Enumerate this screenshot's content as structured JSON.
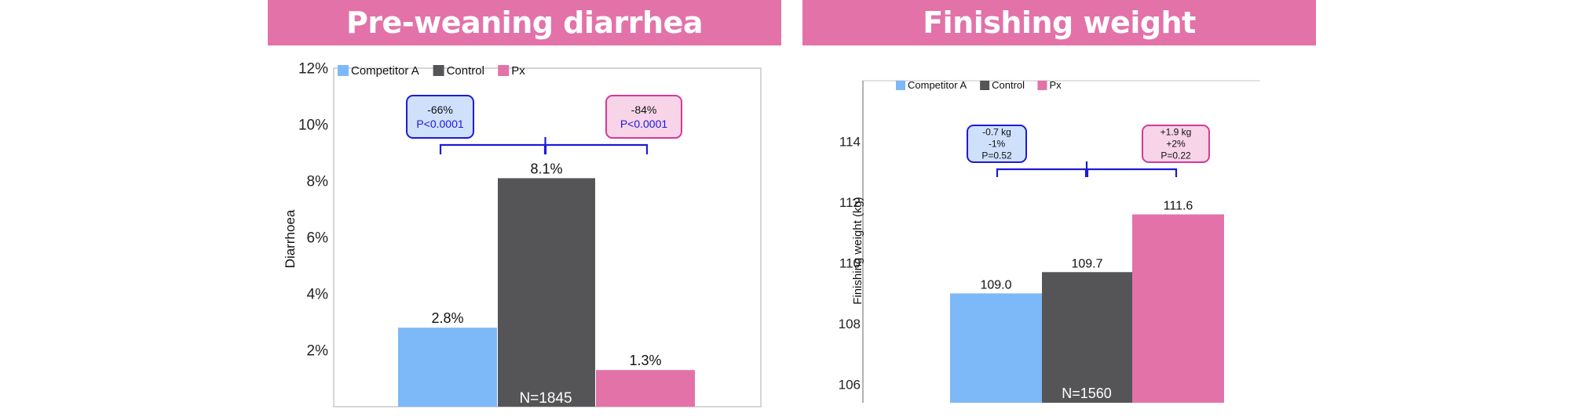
{
  "banners": {
    "left": "Pre-weaning diarrhea",
    "right": "Finishing weight"
  },
  "colors": {
    "banner": "#e372a9",
    "competitor": "#7db8f8",
    "control": "#555558",
    "px": "#e372a9",
    "bracket": "#1d1ad6"
  },
  "legend": [
    "Competitor A",
    "Control",
    "Px"
  ],
  "chart_data": [
    {
      "type": "bar",
      "categories": [
        "Competitor A",
        "Control",
        "Px"
      ],
      "values": [
        2.8,
        8.1,
        1.3
      ],
      "value_labels": [
        "2.8%",
        "8.1%",
        "1.3%"
      ],
      "ylabel": "Diarrhoea",
      "ylim": [
        0,
        12
      ],
      "yticks": [
        2,
        4,
        6,
        8,
        10,
        12
      ],
      "ytick_labels": [
        "2%",
        "4%",
        "6%",
        "8%",
        "10%",
        "12%"
      ],
      "n_label": "N=1845",
      "legend_position": "top-left",
      "annotations": [
        {
          "lines": [
            "-66%",
            "P<0.0001"
          ],
          "between": [
            "Competitor A",
            "Control"
          ]
        },
        {
          "lines": [
            "-84%",
            "P<0.0001"
          ],
          "between": [
            "Control",
            "Px"
          ]
        }
      ]
    },
    {
      "type": "bar",
      "categories": [
        "Competitor A",
        "Control",
        "Px"
      ],
      "values": [
        109.0,
        109.7,
        111.6
      ],
      "value_labels": [
        "109.0",
        "109.7",
        "111.6"
      ],
      "ylabel": "Finishing weight (kg)",
      "ylim": [
        105.4,
        116
      ],
      "yticks": [
        106,
        108,
        110,
        112,
        114
      ],
      "ytick_labels": [
        "106",
        "108",
        "110",
        "112",
        "114"
      ],
      "n_label": "N=1560",
      "legend_position": "top-left",
      "annotations": [
        {
          "lines": [
            "-0.7 kg",
            "-1%",
            "P=0.52"
          ],
          "between": [
            "Competitor A",
            "Control"
          ]
        },
        {
          "lines": [
            "+1.9 kg",
            "+2%",
            "P=0.22"
          ],
          "between": [
            "Control",
            "Px"
          ]
        }
      ]
    }
  ]
}
